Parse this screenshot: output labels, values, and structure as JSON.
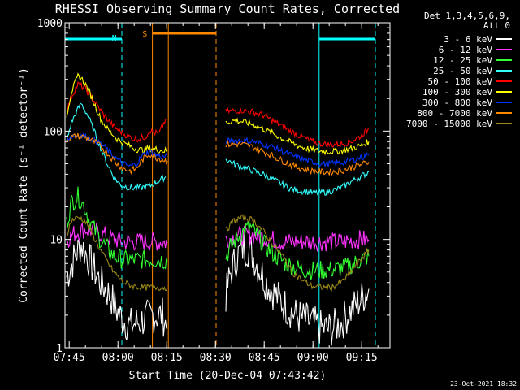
{
  "chart_data": {
    "type": "line",
    "title": "RHESSI Observing Summary Count Rates, Corrected",
    "ylabel": "Corrected Count Rate (s⁻¹ detector⁻¹)",
    "xlabel": "Start Time (20-Dec-04 07:43:42)",
    "yscale": "log",
    "ylim": [
      1,
      1000
    ],
    "xlim_minutes": [
      0,
      100
    ],
    "y_ticks": [
      "1",
      "10",
      "100",
      "1000"
    ],
    "x_ticks": [
      {
        "label": "07:45",
        "t": 1.3
      },
      {
        "label": "08:00",
        "t": 16.3
      },
      {
        "label": "08:15",
        "t": 31.3
      },
      {
        "label": "08:30",
        "t": 46.3
      },
      {
        "label": "08:45",
        "t": 61.3
      },
      {
        "label": "09:00",
        "t": 76.3
      },
      {
        "label": "09:15",
        "t": 91.3
      }
    ],
    "legend_header": [
      "Det 1,3,4,5,6,9,",
      "Att 0"
    ],
    "legend_placement": "right",
    "series": [
      {
        "name": "3 - 6 keV",
        "color": "#ffffff",
        "points": [
          [
            0.5,
            4.5
          ],
          [
            3,
            7
          ],
          [
            5,
            9
          ],
          [
            8,
            6
          ],
          [
            11,
            4
          ],
          [
            14,
            3
          ],
          [
            16,
            2.2
          ],
          [
            18,
            1.8
          ],
          [
            20,
            1.6
          ],
          [
            22,
            1.7
          ],
          [
            24,
            1.8
          ],
          [
            27,
            2
          ],
          [
            30,
            2
          ],
          [
            31.5,
            1.5
          ]
        ],
        "points2": [
          [
            49.5,
            3
          ],
          [
            51,
            5
          ],
          [
            53,
            7
          ],
          [
            55,
            8.5
          ],
          [
            57,
            8
          ],
          [
            59,
            6
          ],
          [
            62,
            4
          ],
          [
            65,
            3
          ],
          [
            68,
            2.4
          ],
          [
            71,
            2
          ],
          [
            74,
            1.8
          ],
          [
            76,
            1.7
          ],
          [
            79,
            1.5
          ],
          [
            82,
            1.5
          ],
          [
            85,
            1.7
          ],
          [
            88,
            2.2
          ],
          [
            91,
            2.8
          ],
          [
            93.5,
            3.5
          ]
        ]
      },
      {
        "name": "6 - 12 keV",
        "color": "#ff33ff",
        "points": [
          [
            0.5,
            10
          ],
          [
            3,
            11.5
          ],
          [
            6,
            12.5
          ],
          [
            9,
            12
          ],
          [
            12,
            11
          ],
          [
            15,
            10
          ],
          [
            18,
            9.5
          ],
          [
            21,
            9.5
          ],
          [
            24,
            9.5
          ],
          [
            27,
            9.5
          ],
          [
            30,
            9.5
          ],
          [
            31.5,
            9.3
          ]
        ],
        "points2": [
          [
            49.5,
            10
          ],
          [
            52,
            10.5
          ],
          [
            55,
            11
          ],
          [
            58,
            11
          ],
          [
            61,
            10.5
          ],
          [
            64,
            10
          ],
          [
            67,
            9.5
          ],
          [
            70,
            9.5
          ],
          [
            73,
            9.5
          ],
          [
            76,
            9.5
          ],
          [
            79,
            9.5
          ],
          [
            82,
            9.5
          ],
          [
            85,
            9.5
          ],
          [
            88,
            9.8
          ],
          [
            91,
            10
          ],
          [
            93.5,
            10
          ]
        ]
      },
      {
        "name": "12 - 25 keV",
        "color": "#33ff33",
        "points": [
          [
            0.5,
            14
          ],
          [
            2,
            22
          ],
          [
            4,
            25
          ],
          [
            6,
            20
          ],
          [
            8,
            14
          ],
          [
            10,
            11
          ],
          [
            12,
            9
          ],
          [
            15,
            7
          ],
          [
            18,
            6.5
          ],
          [
            21,
            6.5
          ],
          [
            24,
            6.5
          ],
          [
            27,
            6.5
          ],
          [
            30,
            6.5
          ],
          [
            31.5,
            6.3
          ]
        ],
        "points2": [
          [
            49.5,
            7
          ],
          [
            52,
            9.5
          ],
          [
            55,
            12
          ],
          [
            57,
            13
          ],
          [
            59,
            11
          ],
          [
            62,
            8.5
          ],
          [
            65,
            7
          ],
          [
            68,
            6
          ],
          [
            71,
            5.5
          ],
          [
            74,
            5.2
          ],
          [
            77,
            5.2
          ],
          [
            80,
            5.2
          ],
          [
            83,
            5.3
          ],
          [
            86,
            5.5
          ],
          [
            89,
            6
          ],
          [
            93.5,
            7
          ]
        ]
      },
      {
        "name": "25 - 50 keV",
        "color": "#33ffff",
        "points": [
          [
            0.5,
            80
          ],
          [
            2,
            120
          ],
          [
            4,
            160
          ],
          [
            5,
            180
          ],
          [
            7,
            140
          ],
          [
            9,
            100
          ],
          [
            11,
            70
          ],
          [
            13,
            50
          ],
          [
            15,
            38
          ],
          [
            17,
            32
          ],
          [
            20,
            30
          ],
          [
            23,
            30
          ],
          [
            26,
            31
          ],
          [
            29,
            35
          ],
          [
            31,
            38
          ]
        ],
        "points2": [
          [
            49.5,
            55
          ],
          [
            52,
            50
          ],
          [
            55,
            46
          ],
          [
            58,
            43
          ],
          [
            61,
            40
          ],
          [
            64,
            36
          ],
          [
            67,
            32
          ],
          [
            70,
            29
          ],
          [
            73,
            28
          ],
          [
            76,
            27
          ],
          [
            79,
            27
          ],
          [
            82,
            28
          ],
          [
            85,
            30
          ],
          [
            88,
            34
          ],
          [
            91,
            38
          ],
          [
            93.5,
            42
          ]
        ]
      },
      {
        "name": "50 - 100 keV",
        "color": "#ff0000",
        "points": [
          [
            0.5,
            150
          ],
          [
            2,
            210
          ],
          [
            4,
            270
          ],
          [
            6,
            250
          ],
          [
            8,
            210
          ],
          [
            10,
            170
          ],
          [
            12,
            140
          ],
          [
            15,
            110
          ],
          [
            18,
            95
          ],
          [
            21,
            85
          ],
          [
            23,
            85
          ],
          [
            25,
            90
          ],
          [
            26,
            102
          ],
          [
            27,
            97
          ],
          [
            29,
            95
          ],
          [
            31,
            130
          ]
        ],
        "points2": [
          [
            49.5,
            150
          ],
          [
            52,
            155
          ],
          [
            55,
            155
          ],
          [
            58,
            150
          ],
          [
            61,
            140
          ],
          [
            64,
            125
          ],
          [
            67,
            110
          ],
          [
            70,
            98
          ],
          [
            73,
            88
          ],
          [
            76,
            80
          ],
          [
            79,
            76
          ],
          [
            82,
            75
          ],
          [
            85,
            76
          ],
          [
            88,
            80
          ],
          [
            91,
            90
          ],
          [
            93.5,
            105
          ]
        ]
      },
      {
        "name": "100 - 300 keV",
        "color": "#ffff00",
        "points": [
          [
            0.5,
            140
          ],
          [
            2,
            230
          ],
          [
            4,
            320
          ],
          [
            5,
            310
          ],
          [
            7,
            250
          ],
          [
            9,
            180
          ],
          [
            11,
            130
          ],
          [
            13,
            105
          ],
          [
            16,
            85
          ],
          [
            19,
            75
          ],
          [
            22,
            68
          ],
          [
            24,
            67
          ],
          [
            26,
            70
          ],
          [
            28,
            68
          ],
          [
            30,
            66
          ],
          [
            31.5,
            66
          ]
        ],
        "points2": [
          [
            49.5,
            120
          ],
          [
            52,
            125
          ],
          [
            55,
            122
          ],
          [
            58,
            115
          ],
          [
            61,
            105
          ],
          [
            64,
            95
          ],
          [
            67,
            85
          ],
          [
            70,
            77
          ],
          [
            73,
            71
          ],
          [
            76,
            67
          ],
          [
            79,
            65
          ],
          [
            82,
            65
          ],
          [
            85,
            66
          ],
          [
            88,
            69
          ],
          [
            91,
            73
          ],
          [
            93.5,
            80
          ]
        ]
      },
      {
        "name": "300 - 800 keV",
        "color": "#0033ff",
        "points": [
          [
            0.5,
            85
          ],
          [
            2,
            90
          ],
          [
            4,
            92
          ],
          [
            6,
            90
          ],
          [
            8,
            86
          ],
          [
            10,
            80
          ],
          [
            12,
            72
          ],
          [
            14,
            63
          ],
          [
            16,
            55
          ],
          [
            18,
            50
          ],
          [
            20,
            47
          ],
          [
            22,
            50
          ],
          [
            24,
            60
          ],
          [
            26,
            65
          ],
          [
            28,
            60
          ],
          [
            30,
            58
          ],
          [
            31.5,
            58
          ]
        ],
        "points2": [
          [
            49.5,
            80
          ],
          [
            52,
            82
          ],
          [
            55,
            82
          ],
          [
            58,
            80
          ],
          [
            61,
            76
          ],
          [
            64,
            71
          ],
          [
            67,
            65
          ],
          [
            70,
            59
          ],
          [
            73,
            55
          ],
          [
            76,
            52
          ],
          [
            79,
            50
          ],
          [
            82,
            50
          ],
          [
            85,
            51
          ],
          [
            88,
            54
          ],
          [
            91,
            57
          ],
          [
            93.5,
            60
          ]
        ]
      },
      {
        "name": "800 - 7000 keV",
        "color": "#ff8800",
        "points": [
          [
            0.5,
            82
          ],
          [
            2,
            88
          ],
          [
            4,
            90
          ],
          [
            6,
            88
          ],
          [
            8,
            83
          ],
          [
            10,
            76
          ],
          [
            12,
            68
          ],
          [
            14,
            58
          ],
          [
            16,
            50
          ],
          [
            18,
            45
          ],
          [
            20,
            43
          ],
          [
            22,
            45
          ],
          [
            24,
            55
          ],
          [
            26,
            62
          ],
          [
            28,
            57
          ],
          [
            30,
            55
          ],
          [
            31.5,
            53
          ]
        ],
        "points2": [
          [
            49.5,
            75
          ],
          [
            52,
            76
          ],
          [
            55,
            75
          ],
          [
            58,
            71
          ],
          [
            61,
            65
          ],
          [
            64,
            59
          ],
          [
            67,
            53
          ],
          [
            70,
            48
          ],
          [
            73,
            45
          ],
          [
            76,
            43
          ],
          [
            79,
            42
          ],
          [
            82,
            42
          ],
          [
            85,
            43
          ],
          [
            88,
            46
          ],
          [
            91,
            49
          ],
          [
            93.5,
            52
          ]
        ]
      },
      {
        "name": "7000 - 15000 keV",
        "color": "#99881a",
        "points": [
          [
            0.5,
            11
          ],
          [
            2,
            15
          ],
          [
            4,
            16
          ],
          [
            6,
            15
          ],
          [
            8,
            12
          ],
          [
            10,
            9
          ],
          [
            12,
            7
          ],
          [
            15,
            5
          ],
          [
            18,
            4
          ],
          [
            21,
            3.7
          ],
          [
            24,
            3.6
          ],
          [
            27,
            3.6
          ],
          [
            30,
            3.6
          ],
          [
            31.5,
            3.6
          ]
        ],
        "points2": [
          [
            49.5,
            12
          ],
          [
            52,
            15
          ],
          [
            55,
            16
          ],
          [
            58,
            15
          ],
          [
            61,
            12
          ],
          [
            64,
            9
          ],
          [
            67,
            7
          ],
          [
            70,
            5
          ],
          [
            73,
            4.2
          ],
          [
            76,
            3.7
          ],
          [
            79,
            3.6
          ],
          [
            82,
            3.6
          ],
          [
            85,
            4
          ],
          [
            88,
            5
          ],
          [
            91,
            6.5
          ],
          [
            93.5,
            8
          ]
        ]
      }
    ],
    "annotations": [
      {
        "label": "N",
        "color": "#00ffff"
      },
      {
        "label": "S",
        "color": "#ff8800"
      }
    ],
    "vertical_lines": [
      {
        "t": 0.0,
        "color": "#00ffff",
        "style": "solid"
      },
      {
        "t": 17.5,
        "color": "#00ffff",
        "style": "dashed"
      },
      {
        "t": 26.9,
        "color": "#ff8800",
        "style": "solid"
      },
      {
        "t": 31.8,
        "color": "#ff8800",
        "style": "solid"
      },
      {
        "t": 46.5,
        "color": "#ff8800",
        "style": "dashed"
      },
      {
        "t": 78.2,
        "color": "#00ffff",
        "style": "solid"
      },
      {
        "t": 95.5,
        "color": "#00ffff",
        "style": "dashed"
      }
    ],
    "day_bars": [
      {
        "t0": 0.0,
        "t1": 17.5,
        "color": "#00ffff"
      },
      {
        "t0": 78.2,
        "t1": 95.5,
        "color": "#00ffff"
      }
    ],
    "saa_bars": [
      {
        "t0": 26.9,
        "t1": 46.5,
        "color": "#ff8800"
      }
    ],
    "footer_date": "23-Oct-2021 18:32"
  }
}
